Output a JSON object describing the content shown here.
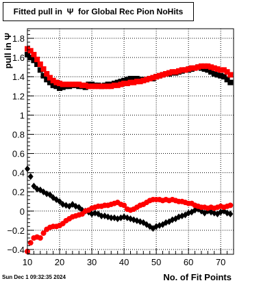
{
  "title": "Fitted pull in  Ψ  for Global Rec Pion NoHits",
  "timestamp": "Sun Dec  1 09:32:35 2024",
  "chart_data": {
    "type": "scatter",
    "title": "Fitted pull in  Ψ  for Global Rec Pion NoHits",
    "xlabel": "No. of Fit Points",
    "ylabel": "pull in  Ψ",
    "xlim": [
      10,
      74
    ],
    "ylim": [
      -0.45,
      1.9
    ],
    "xticks": [
      10,
      20,
      30,
      40,
      50,
      60,
      70
    ],
    "yticks": [
      -0.4,
      -0.2,
      0,
      0.2,
      0.4,
      0.6,
      0.8,
      1,
      1.2,
      1.4,
      1.6,
      1.8
    ],
    "grid": true,
    "series": [
      {
        "color": "#000000",
        "marker": "diamond",
        "x": [
          10,
          11,
          12,
          13,
          14,
          15,
          16,
          17,
          18,
          19,
          20,
          21,
          22,
          23,
          24,
          25,
          26,
          27,
          28,
          29,
          30,
          31,
          32,
          33,
          34,
          35,
          36,
          37,
          38,
          39,
          40,
          41,
          42,
          43,
          44,
          45,
          46,
          47,
          48,
          49,
          50,
          51,
          52,
          53,
          54,
          55,
          56,
          57,
          58,
          59,
          60,
          61,
          62,
          63,
          64,
          65,
          66,
          67,
          68,
          69,
          70,
          71,
          72,
          73
        ],
        "y": [
          0.44,
          0.36,
          0.26,
          0.23,
          0.22,
          0.2,
          0.18,
          0.17,
          0.14,
          0.12,
          0.1,
          0.07,
          0.06,
          0.05,
          0.07,
          0.05,
          0.04,
          0.01,
          0.0,
          -0.01,
          -0.03,
          -0.02,
          -0.03,
          -0.05,
          -0.05,
          -0.06,
          -0.07,
          -0.07,
          -0.08,
          -0.07,
          -0.06,
          -0.07,
          -0.08,
          -0.09,
          -0.1,
          -0.11,
          -0.12,
          -0.14,
          -0.16,
          -0.18,
          -0.16,
          -0.15,
          -0.14,
          -0.12,
          -0.11,
          -0.09,
          -0.08,
          -0.06,
          -0.05,
          -0.04,
          -0.02,
          -0.01,
          0.01,
          0.02,
          0.0,
          -0.02,
          0.0,
          -0.01,
          -0.02,
          -0.03,
          -0.01,
          0.0,
          -0.02,
          -0.03
        ]
      },
      {
        "color": "#ff0000",
        "marker": "circle",
        "x": [
          10,
          11,
          12,
          13,
          14,
          15,
          16,
          17,
          18,
          19,
          20,
          21,
          22,
          23,
          24,
          25,
          26,
          27,
          28,
          29,
          30,
          31,
          32,
          33,
          34,
          35,
          36,
          37,
          38,
          39,
          40,
          41,
          42,
          43,
          44,
          45,
          46,
          47,
          48,
          49,
          50,
          51,
          52,
          53,
          54,
          55,
          56,
          57,
          58,
          59,
          60,
          61,
          62,
          63,
          64,
          65,
          66,
          67,
          68,
          69,
          70,
          71,
          72,
          73
        ],
        "y": [
          -0.42,
          -0.33,
          -0.28,
          -0.27,
          -0.28,
          -0.23,
          -0.19,
          -0.17,
          -0.16,
          -0.16,
          -0.15,
          -0.13,
          -0.1,
          -0.08,
          -0.06,
          -0.05,
          -0.04,
          -0.03,
          0.0,
          0.01,
          0.03,
          0.04,
          0.05,
          0.05,
          0.06,
          0.06,
          0.07,
          0.08,
          0.09,
          0.07,
          0.06,
          0.02,
          0.01,
          0.02,
          0.04,
          0.06,
          0.07,
          0.09,
          0.11,
          0.12,
          0.12,
          0.12,
          0.11,
          0.12,
          0.11,
          0.12,
          0.11,
          0.1,
          0.1,
          0.09,
          0.08,
          0.08,
          0.06,
          0.05,
          0.04,
          0.04,
          0.03,
          0.04,
          0.03,
          0.04,
          0.05,
          0.04,
          0.05,
          0.06
        ]
      },
      {
        "color": "#000000",
        "marker": "square",
        "x": [
          10,
          11,
          12,
          13,
          14,
          15,
          16,
          17,
          18,
          19,
          20,
          21,
          22,
          23,
          24,
          25,
          26,
          27,
          28,
          29,
          30,
          31,
          32,
          33,
          34,
          35,
          36,
          37,
          38,
          39,
          40,
          41,
          42,
          43,
          44,
          45,
          46,
          47,
          48,
          49,
          50,
          51,
          52,
          53,
          54,
          55,
          56,
          57,
          58,
          59,
          60,
          61,
          62,
          63,
          64,
          65,
          66,
          67,
          68,
          69,
          70,
          71,
          72,
          73
        ],
        "y": [
          1.63,
          1.6,
          1.57,
          1.53,
          1.47,
          1.41,
          1.37,
          1.34,
          1.31,
          1.3,
          1.28,
          1.29,
          1.3,
          1.3,
          1.31,
          1.31,
          1.3,
          1.3,
          1.29,
          1.32,
          1.32,
          1.31,
          1.31,
          1.3,
          1.31,
          1.32,
          1.32,
          1.33,
          1.34,
          1.35,
          1.36,
          1.37,
          1.38,
          1.38,
          1.38,
          1.37,
          1.37,
          1.37,
          1.38,
          1.38,
          1.4,
          1.41,
          1.42,
          1.43,
          1.43,
          1.44,
          1.44,
          1.45,
          1.46,
          1.47,
          1.47,
          1.48,
          1.49,
          1.5,
          1.49,
          1.48,
          1.47,
          1.45,
          1.43,
          1.42,
          1.41,
          1.4,
          1.37,
          1.34
        ]
      },
      {
        "color": "#ff0000",
        "marker": "square",
        "x": [
          10,
          11,
          12,
          13,
          14,
          15,
          16,
          17,
          18,
          19,
          20,
          21,
          22,
          23,
          24,
          25,
          26,
          27,
          28,
          29,
          30,
          31,
          32,
          33,
          34,
          35,
          36,
          37,
          38,
          39,
          40,
          41,
          42,
          43,
          44,
          45,
          46,
          47,
          48,
          49,
          50,
          51,
          52,
          53,
          54,
          55,
          56,
          57,
          58,
          59,
          60,
          61,
          62,
          63,
          64,
          65,
          66,
          67,
          68,
          69,
          70,
          71,
          72,
          73
        ],
        "y": [
          1.69,
          1.67,
          1.63,
          1.58,
          1.53,
          1.48,
          1.43,
          1.39,
          1.36,
          1.34,
          1.33,
          1.32,
          1.32,
          1.32,
          1.32,
          1.32,
          1.32,
          1.31,
          1.31,
          1.3,
          1.3,
          1.3,
          1.3,
          1.3,
          1.3,
          1.3,
          1.3,
          1.31,
          1.31,
          1.32,
          1.33,
          1.33,
          1.34,
          1.34,
          1.35,
          1.35,
          1.36,
          1.37,
          1.38,
          1.39,
          1.4,
          1.41,
          1.42,
          1.43,
          1.44,
          1.45,
          1.45,
          1.46,
          1.47,
          1.47,
          1.48,
          1.49,
          1.49,
          1.5,
          1.51,
          1.51,
          1.51,
          1.5,
          1.49,
          1.48,
          1.47,
          1.47,
          1.45,
          1.42
        ]
      }
    ]
  }
}
